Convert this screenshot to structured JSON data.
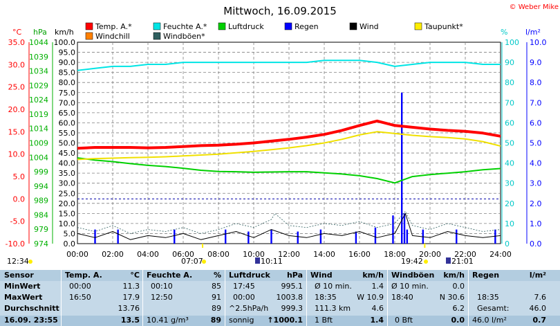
{
  "title": "Mittwoch, 16.09.2015",
  "copyright": "© Weber Mike",
  "colors": {
    "temp": "#ff0000",
    "humidity": "#00e5e5",
    "pressure": "#00d000",
    "rain": "#0000ff",
    "wind": "#000000",
    "dewpoint": "#ffee00",
    "windchill": "#ff8000",
    "gust": "#2f5f5f"
  },
  "legend": [
    {
      "label": "Temp. A.*",
      "color": "#ff0000"
    },
    {
      "label": "Feuchte A.*",
      "color": "#00e5e5"
    },
    {
      "label": "Luftdruck",
      "color": "#00d000"
    },
    {
      "label": "Regen",
      "color": "#0000ff"
    },
    {
      "label": "Wind",
      "color": "#000000"
    },
    {
      "label": "Taupunkt*",
      "color": "#ffee00"
    },
    {
      "label": "Windchill",
      "color": "#ff8000"
    },
    {
      "label": "Windböen*",
      "color": "#2f5f5f"
    }
  ],
  "axis_units": {
    "temp": "°C",
    "pressure": "hPa",
    "wind": "km/h",
    "humidity": "%",
    "rain": "l/m²"
  },
  "chart_data": {
    "type": "line",
    "title": "Mittwoch, 16.09.2015",
    "x_ticks": [
      "00:00",
      "02:00",
      "04:00",
      "06:00",
      "08:00",
      "10:00",
      "12:00",
      "14:00",
      "16:00",
      "18:00",
      "20:00",
      "22:00",
      "24:00"
    ],
    "axes": {
      "temp": {
        "unit": "°C",
        "range": [
          -10,
          35
        ],
        "ticks": [
          "35.0",
          "30.0",
          "25.0",
          "20.0",
          "15.0",
          "10.0",
          "5.0",
          "0.0",
          "-5.0",
          "-10.0"
        ]
      },
      "pressure": {
        "unit": "hPa",
        "range": [
          974,
          1044
        ],
        "ticks": [
          "1044",
          "1039",
          "1034",
          "1029",
          "1024",
          "1019",
          "1014",
          "1009",
          "1004",
          "999",
          "994",
          "989",
          "984",
          "979",
          "974"
        ]
      },
      "wind": {
        "unit": "km/h",
        "range": [
          0,
          100
        ],
        "ticks": [
          "100.0",
          "95.0",
          "90.0",
          "85.0",
          "80.0",
          "75.0",
          "70.0",
          "65.0",
          "60.0",
          "55.0",
          "50.0",
          "45.0",
          "40.0",
          "35.0",
          "30.0",
          "25.0",
          "20.0",
          "15.0",
          "10.0",
          "5.0",
          "0.0"
        ]
      },
      "humidity": {
        "unit": "%",
        "range": [
          0,
          100
        ],
        "ticks": [
          "100",
          "90",
          "80",
          "70",
          "60",
          "50",
          "40",
          "30",
          "20",
          "10",
          "0"
        ]
      },
      "rain": {
        "unit": "l/m²",
        "range": [
          0,
          10
        ],
        "ticks": [
          "10.0",
          "9.0",
          "8.0",
          "7.0",
          "6.0",
          "5.0",
          "4.0",
          "3.0",
          "2.0",
          "1.0",
          "0.0"
        ]
      }
    },
    "series": [
      {
        "name": "Temp. A.*",
        "axis": "temp",
        "x": [
          0,
          1,
          2,
          3,
          4,
          5,
          6,
          7,
          8,
          9,
          10,
          11,
          12,
          13,
          14,
          15,
          16,
          17,
          18,
          19,
          20,
          21,
          22,
          23,
          24
        ],
        "values": [
          11.3,
          11.5,
          11.5,
          11.5,
          11.4,
          11.5,
          11.7,
          11.9,
          12.0,
          12.2,
          12.5,
          12.9,
          13.3,
          13.8,
          14.4,
          15.3,
          16.4,
          17.4,
          16.4,
          16.0,
          15.6,
          15.3,
          15.1,
          14.7,
          14.0
        ]
      },
      {
        "name": "Feuchte A.*",
        "axis": "humidity",
        "x": [
          0,
          1,
          2,
          3,
          4,
          5,
          6,
          7,
          8,
          9,
          10,
          11,
          12,
          13,
          14,
          15,
          16,
          17,
          18,
          19,
          20,
          21,
          22,
          23,
          24
        ],
        "values": [
          86,
          87,
          88,
          88,
          89,
          89,
          90,
          90,
          90,
          90,
          90,
          90,
          90,
          90,
          91,
          91,
          91,
          90,
          88,
          89,
          90,
          90,
          90,
          89,
          89
        ]
      },
      {
        "name": "Luftdruck",
        "axis": "pressure",
        "x": [
          0,
          1,
          2,
          3,
          4,
          5,
          6,
          7,
          8,
          9,
          10,
          11,
          12,
          13,
          14,
          15,
          16,
          17,
          18,
          19,
          20,
          21,
          22,
          23,
          24
        ],
        "values": [
          1003.8,
          1003.0,
          1002.5,
          1001.8,
          1001.2,
          1000.8,
          1000.2,
          999.5,
          999.1,
          999.0,
          998.8,
          998.9,
          999.0,
          999.0,
          998.6,
          998.2,
          997.6,
          996.6,
          995.1,
          997.3,
          998.0,
          998.5,
          999.0,
          999.7,
          1000.1
        ]
      },
      {
        "name": "Taupunkt*",
        "axis": "temp",
        "x": [
          0,
          1,
          2,
          3,
          4,
          5,
          6,
          7,
          8,
          9,
          10,
          11,
          12,
          13,
          14,
          15,
          16,
          17,
          18,
          19,
          20,
          21,
          22,
          23,
          24
        ],
        "values": [
          8.8,
          9.0,
          9.1,
          9.2,
          9.3,
          9.4,
          9.6,
          9.8,
          10.0,
          10.3,
          10.6,
          11.0,
          11.4,
          11.9,
          12.5,
          13.3,
          14.3,
          15.0,
          14.6,
          14.2,
          13.9,
          13.7,
          13.4,
          12.8,
          11.8
        ]
      },
      {
        "name": "Wind",
        "axis": "wind",
        "x": [
          0,
          1,
          2,
          3,
          4,
          5,
          6,
          7,
          8,
          9,
          10,
          11,
          12,
          13,
          14,
          15,
          16,
          17,
          18,
          18.6,
          19,
          20,
          21,
          22,
          23,
          24
        ],
        "values": [
          5,
          3,
          6,
          2,
          4,
          3,
          5,
          2,
          4,
          6,
          3,
          7,
          4,
          3,
          5,
          4,
          6,
          3,
          5,
          15,
          4,
          3,
          6,
          4,
          3,
          4
        ]
      },
      {
        "name": "Windböen*",
        "axis": "wind",
        "x": [
          0,
          1,
          2,
          3,
          4,
          5,
          6,
          7,
          8,
          9,
          10,
          11,
          11.2,
          12,
          13,
          14,
          15,
          16,
          17,
          18,
          18.6,
          19,
          20,
          21,
          22,
          23,
          24
        ],
        "values": [
          8,
          6,
          9,
          5,
          7,
          6,
          8,
          5,
          7,
          10,
          8,
          12,
          15,
          9,
          8,
          10,
          9,
          11,
          8,
          10,
          16,
          9,
          7,
          10,
          8,
          6,
          7
        ]
      },
      {
        "name": "Regen",
        "axis": "rain",
        "type": "bar",
        "x": [
          18.4,
          18.55,
          18.7,
          17.9,
          16.9,
          15.8,
          12.5,
          9.7,
          1.0,
          2.3,
          5.5,
          8.4,
          11.0,
          13.8,
          19.6,
          21.5,
          23.7
        ],
        "values": [
          7.5,
          1.5,
          0.7,
          1.4,
          0.8,
          0.6,
          0.6,
          0.6,
          0.7,
          0.7,
          0.7,
          0.7,
          0.7,
          0.7,
          0.7,
          0.7,
          0.7
        ]
      }
    ],
    "hlines": [
      {
        "axis": "temp",
        "value": 0
      }
    ],
    "grid": true,
    "legend": "top"
  },
  "astro": {
    "left": "12:34",
    "sunrise": "07:07",
    "moon1": "10:11",
    "sunset": "19:42",
    "moon2": "21:01"
  },
  "table": {
    "headers": [
      "Sensor",
      "Temp. A.",
      "°C",
      "Feuchte A.",
      "%",
      "Luftdruck",
      "hPa",
      "Wind",
      "km/h",
      "Windböen",
      "km/h",
      "Regen",
      "l/m²"
    ],
    "rows": {
      "min": {
        "label": "MinWert",
        "temp_time": "00:00",
        "temp": "11.3",
        "hum_time": "00:10",
        "hum": "85",
        "press_time": "17:45",
        "press": "995.1",
        "wind_label": "Ø 10 min.",
        "wind": "1.4",
        "gust_label": "Ø 10 min.",
        "gust": "0.0",
        "rain_label": "",
        "rain": ""
      },
      "max": {
        "label": "MaxWert",
        "temp_time": "16:50",
        "temp": "17.9",
        "hum_time": "12:50",
        "hum": "91",
        "press_time": "00:00",
        "press": "1003.8",
        "wind_label": "18:35",
        "wind": "W 10.9",
        "gust_label": "18:40",
        "gust": "N 30.6",
        "rain_label": "18:35",
        "rain": "7.6"
      },
      "avg": {
        "label": "Durchschnitt",
        "temp": "13.76",
        "hum": "89",
        "press_label": "^2.5hPa/h",
        "press": "999.3",
        "wind_label": "111.3 km",
        "wind": "4.6",
        "gust": "6.2",
        "rain_label": "Gesamt:",
        "rain": "46.0"
      },
      "now": {
        "label": "16.09. 23:55",
        "temp": "13.5",
        "hum_label": "10.41 g/m³",
        "hum": "89",
        "press_label": "sonnig",
        "press": "↑1000.1",
        "wind_label": "1 Bft",
        "wind": "1.4",
        "gust_label": "0 Bft",
        "gust": "0.0",
        "rain_label": "46.0 l/m²",
        "rain": "0.7"
      }
    }
  }
}
